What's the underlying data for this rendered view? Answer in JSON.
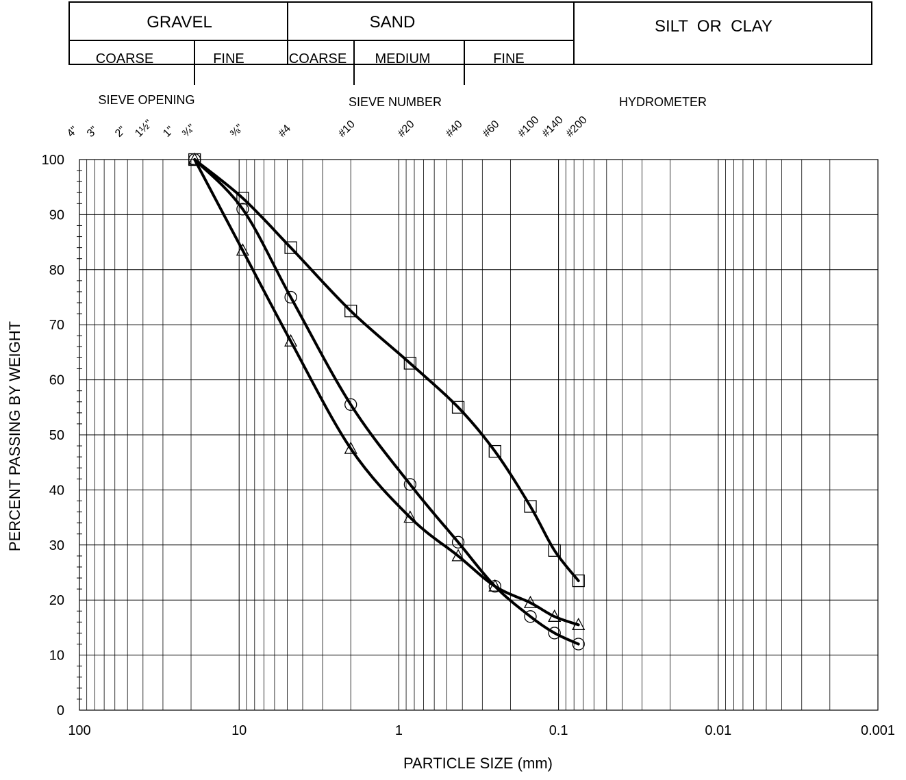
{
  "classification": {
    "top": [
      {
        "label": "GRAVEL"
      },
      {
        "label": "SAND"
      },
      {
        "label": "SILT  OR  CLAY"
      }
    ],
    "sub": [
      {
        "label": "COARSE"
      },
      {
        "label": "FINE"
      },
      {
        "label": "COARSE"
      },
      {
        "label": "MEDIUM"
      },
      {
        "label": "FINE"
      }
    ]
  },
  "sections": {
    "sieve_opening": "SIEVE OPENING",
    "sieve_number": "SIEVE NUMBER",
    "hydrometer": "HYDROMETER"
  },
  "sieves": [
    {
      "label": "4\"",
      "size": 100
    },
    {
      "label": "3\"",
      "size": 75
    },
    {
      "label": "2\"",
      "size": 50
    },
    {
      "label": "1½\"",
      "size": 37.5
    },
    {
      "label": "1\"",
      "size": 25
    },
    {
      "label": "¾\"",
      "size": 19
    },
    {
      "label": "⅜\"",
      "size": 9.5
    },
    {
      "label": "#4",
      "size": 4.75
    },
    {
      "label": "#10",
      "size": 2.0
    },
    {
      "label": "#20",
      "size": 0.85
    },
    {
      "label": "#40",
      "size": 0.425
    },
    {
      "label": "#60",
      "size": 0.25
    },
    {
      "label": "#100",
      "size": 0.15
    },
    {
      "label": "#140",
      "size": 0.106
    },
    {
      "label": "#200",
      "size": 0.075
    }
  ],
  "chart_data": {
    "type": "line",
    "title": "",
    "xlabel": "PARTICLE SIZE (mm)",
    "ylabel": "PERCENT PASSING BY WEIGHT",
    "x_scale": "log",
    "x_reversed": true,
    "xlim": [
      100,
      0.001
    ],
    "ylim": [
      0,
      100
    ],
    "x_ticks": [
      100,
      10,
      1,
      0.1,
      0.01,
      0.001
    ],
    "x_tick_labels": [
      "100",
      "10",
      "1",
      "0.1",
      "0.01",
      "0.001"
    ],
    "y_ticks": [
      0,
      10,
      20,
      30,
      40,
      50,
      60,
      70,
      80,
      90,
      100
    ],
    "grid": true,
    "legend": "none",
    "x": [
      19,
      9.5,
      4.75,
      2.0,
      0.85,
      0.425,
      0.25,
      0.15,
      0.106,
      0.075
    ],
    "series": [
      {
        "marker": "square",
        "values": [
          100,
          93,
          84,
          72.5,
          63,
          55,
          47,
          37,
          29,
          23.5
        ]
      },
      {
        "marker": "circle",
        "values": [
          100,
          91,
          75,
          55.5,
          41,
          30.5,
          22.5,
          17,
          14,
          12
        ]
      },
      {
        "marker": "triangle",
        "values": [
          100,
          83.5,
          67,
          47.5,
          35,
          28,
          22.5,
          19.5,
          17,
          15.5
        ]
      }
    ]
  }
}
